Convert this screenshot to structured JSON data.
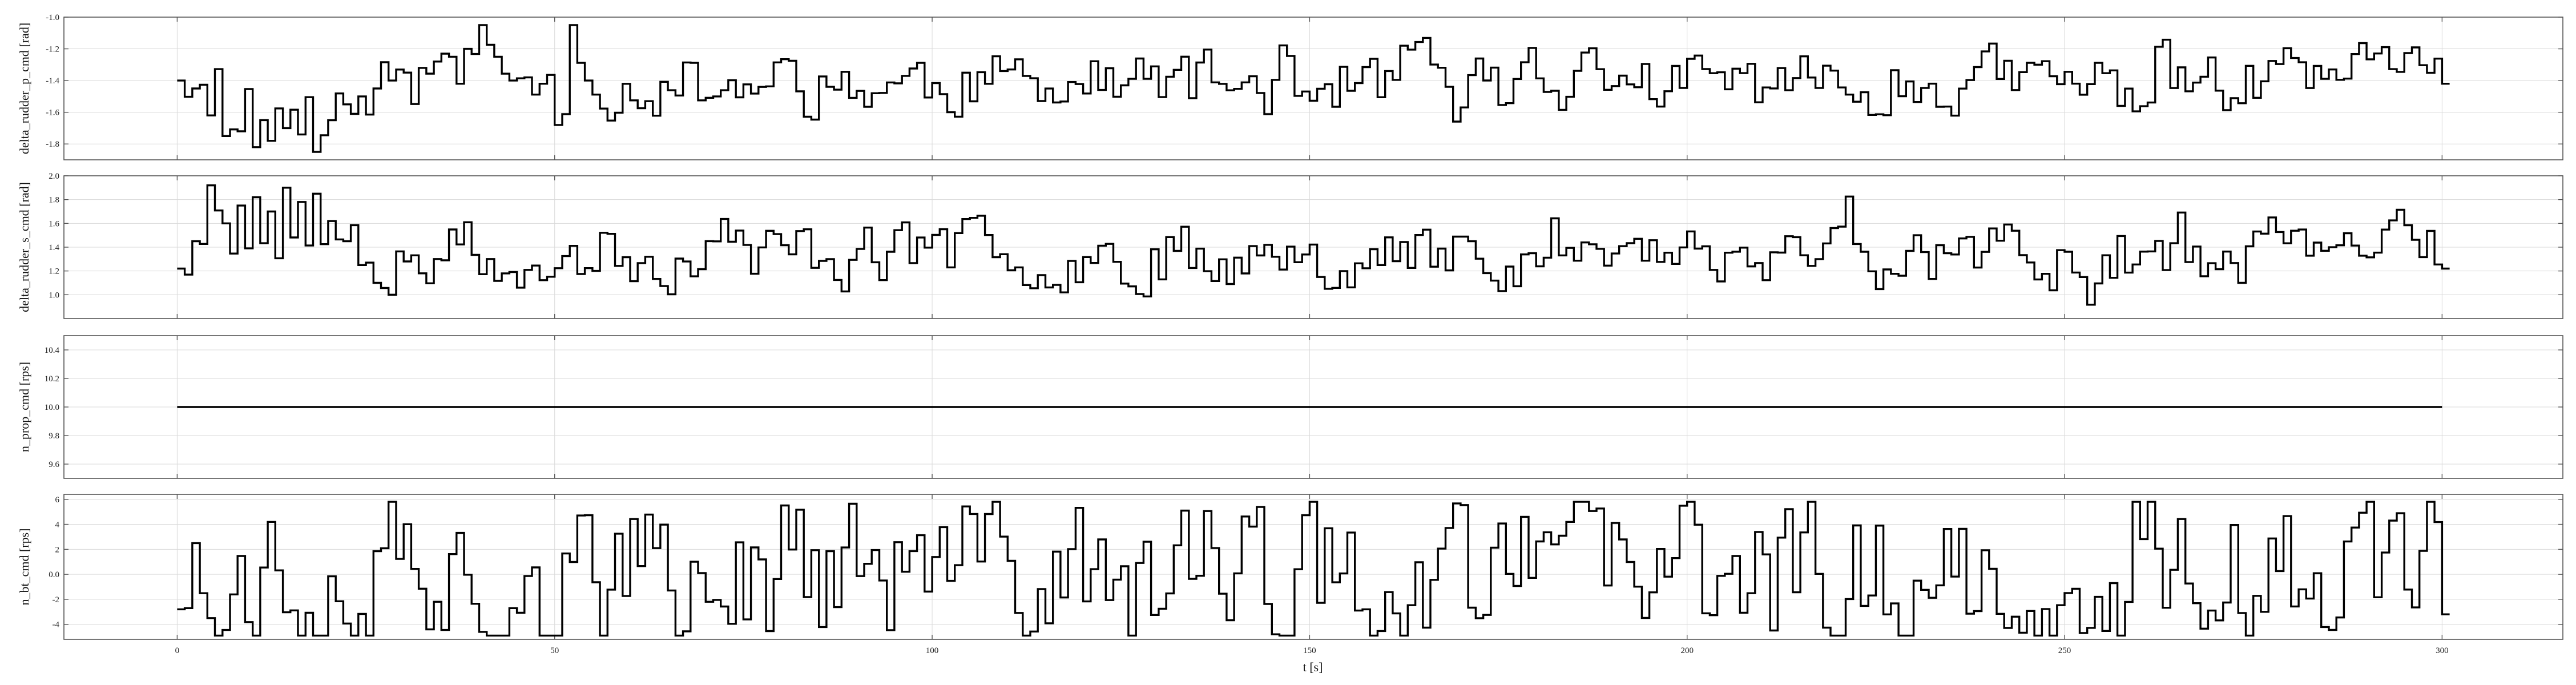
{
  "chart_data": {
    "type": "line",
    "style": "step",
    "x_label": "t [s]",
    "x_range": [
      -15,
      316
    ],
    "x_ticks": [
      0,
      50,
      100,
      150,
      200,
      250,
      300
    ],
    "grid": true,
    "line_color": "#000000",
    "panels": [
      {
        "ylabel": "delta_rudder_p_cmd [rad]",
        "ylim": [
          -1.9,
          -1.0
        ],
        "y_ticks": [
          -1.8,
          -1.6,
          -1.4,
          -1.2,
          -1.0
        ],
        "step": 1,
        "seed": 11,
        "base": -1.42,
        "amp": 0.11,
        "anchors": [
          [
            0,
            -1.4
          ],
          [
            2,
            -1.45
          ],
          [
            4,
            -1.62
          ],
          [
            6,
            -1.75
          ],
          [
            8,
            -1.72
          ],
          [
            10,
            -1.82
          ],
          [
            12,
            -1.78
          ],
          [
            14,
            -1.7
          ],
          [
            16,
            -1.74
          ],
          [
            18,
            -1.85
          ],
          [
            20,
            -1.65
          ],
          [
            22,
            -1.55
          ],
          [
            24,
            -1.5
          ],
          [
            26,
            -1.45
          ],
          [
            28,
            -1.4
          ],
          [
            30,
            -1.35
          ],
          [
            32,
            -1.32
          ],
          [
            34,
            -1.28
          ],
          [
            36,
            -1.25
          ],
          [
            38,
            -1.2
          ],
          [
            40,
            -1.05
          ],
          [
            42,
            -1.25
          ],
          [
            44,
            -1.4
          ],
          [
            46,
            -1.38
          ],
          [
            48,
            -1.42
          ],
          [
            50,
            -1.68
          ],
          [
            52,
            -1.05
          ],
          [
            54,
            -1.4
          ],
          [
            300,
            -1.42
          ]
        ],
        "clamp": [
          -1.88,
          -1.03
        ]
      },
      {
        "ylabel": "delta_rudder_s_cmd [rad]",
        "ylim": [
          0.8,
          2.0
        ],
        "y_ticks": [
          1.0,
          1.2,
          1.4,
          1.6,
          1.8,
          2.0
        ],
        "step": 1,
        "seed": 23,
        "base": 1.35,
        "amp": 0.15,
        "anchors": [
          [
            0,
            1.22
          ],
          [
            2,
            1.45
          ],
          [
            4,
            1.92
          ],
          [
            6,
            1.6
          ],
          [
            8,
            1.75
          ],
          [
            10,
            1.82
          ],
          [
            12,
            1.7
          ],
          [
            14,
            1.9
          ],
          [
            16,
            1.78
          ],
          [
            18,
            1.85
          ],
          [
            20,
            1.62
          ],
          [
            22,
            1.45
          ],
          [
            24,
            1.25
          ],
          [
            26,
            1.1
          ],
          [
            28,
            1.0
          ],
          [
            30,
            1.28
          ],
          [
            32,
            1.18
          ],
          [
            34,
            1.3
          ],
          [
            300,
            1.22
          ]
        ],
        "clamp": [
          0.85,
          1.95
        ]
      },
      {
        "ylabel": "n_prop_cmd [rps]",
        "ylim": [
          9.5,
          10.5
        ],
        "y_ticks": [
          9.6,
          9.8,
          10.0,
          10.2,
          10.4
        ],
        "step": 300,
        "seed": 1,
        "base": 10.0,
        "amp": 0.0,
        "anchors": [
          [
            0,
            10.0
          ],
          [
            300,
            10.0
          ]
        ],
        "clamp": [
          9.5,
          10.5
        ]
      },
      {
        "ylabel": "n_bt_cmd [rps]",
        "ylim": [
          -5.2,
          6.4
        ],
        "y_ticks": [
          -4,
          -2,
          0,
          2,
          4,
          6
        ],
        "step": 1,
        "seed": 37,
        "base": 0.0,
        "amp": 3.3,
        "anchors": [
          [
            0,
            -2.8
          ],
          [
            1,
            -2.7
          ],
          [
            2,
            2.5
          ],
          [
            4,
            -3.5
          ],
          [
            50,
            -4.9
          ],
          [
            300,
            -3.2
          ]
        ],
        "clamp": [
          -4.9,
          5.8
        ]
      }
    ]
  }
}
